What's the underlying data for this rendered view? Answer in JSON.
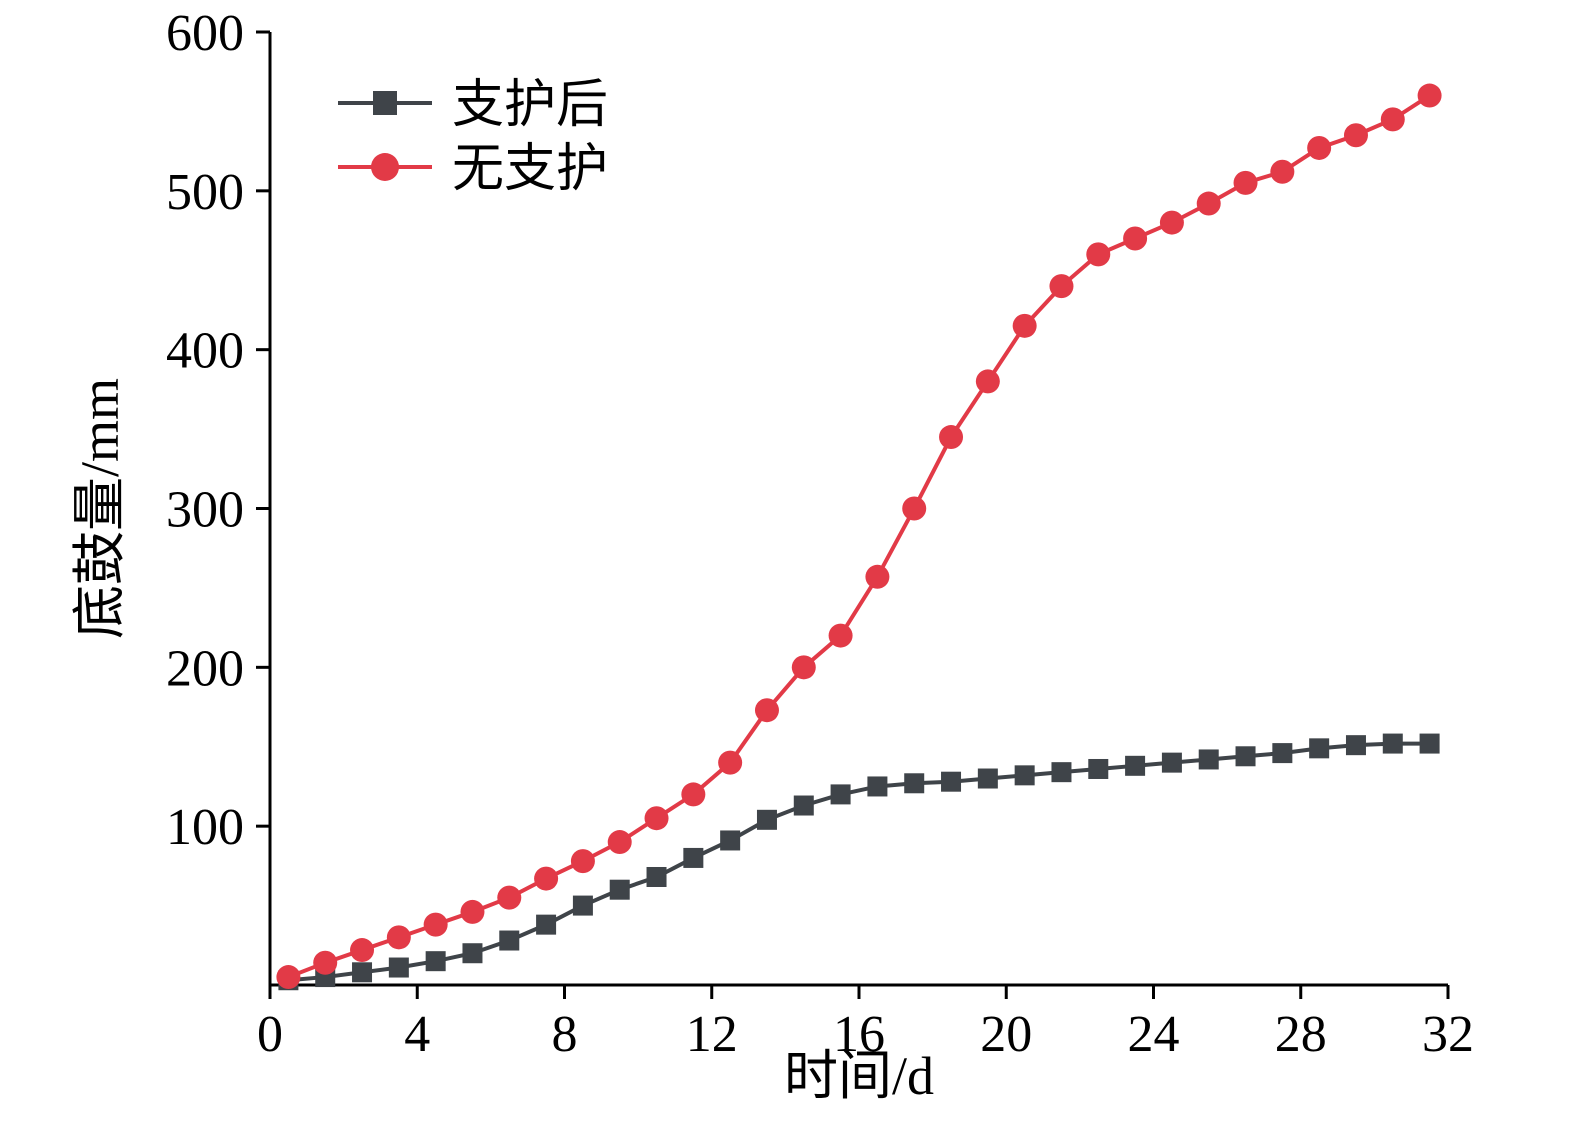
{
  "chart_data": {
    "type": "line",
    "title": "",
    "xlabel": "时间/d",
    "ylabel": "底鼓量/mm",
    "xlim": [
      0,
      32
    ],
    "ylim": [
      0,
      600
    ],
    "xticks": [
      0,
      4,
      8,
      12,
      16,
      20,
      24,
      28,
      32
    ],
    "yticks": [
      100,
      200,
      300,
      400,
      500,
      600
    ],
    "grid": false,
    "legend_position": "top-left",
    "axis_color": "#000000",
    "x": [
      0.5,
      1.5,
      2.5,
      3.5,
      4.5,
      5.5,
      6.5,
      7.5,
      8.5,
      9.5,
      10.5,
      11.5,
      12.5,
      13.5,
      14.5,
      15.5,
      16.5,
      17.5,
      18.5,
      19.5,
      20.5,
      21.5,
      22.5,
      23.5,
      24.5,
      25.5,
      26.5,
      27.5,
      28.5,
      29.5,
      30.5,
      31.5
    ],
    "series": [
      {
        "name": "支护后",
        "color": "#3f4449",
        "marker": "square",
        "values": [
          3,
          5,
          8,
          11,
          15,
          20,
          28,
          38,
          50,
          60,
          68,
          80,
          91,
          104,
          113,
          120,
          125,
          127,
          128,
          130,
          132,
          134,
          136,
          138,
          140,
          142,
          144,
          146,
          149,
          151,
          152,
          152
        ]
      },
      {
        "name": "无支护",
        "color": "#e23a47",
        "marker": "circle",
        "values": [
          5,
          14,
          22,
          30,
          38,
          46,
          55,
          67,
          78,
          90,
          105,
          120,
          140,
          173,
          200,
          220,
          257,
          300,
          345,
          380,
          415,
          440,
          460,
          470,
          480,
          492,
          505,
          512,
          527,
          535,
          545,
          560
        ]
      }
    ]
  }
}
